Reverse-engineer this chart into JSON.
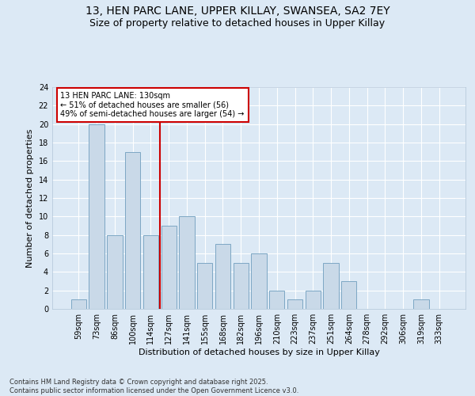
{
  "title1": "13, HEN PARC LANE, UPPER KILLAY, SWANSEA, SA2 7EY",
  "title2": "Size of property relative to detached houses in Upper Killay",
  "xlabel": "Distribution of detached houses by size in Upper Killay",
  "ylabel": "Number of detached properties",
  "categories": [
    "59sqm",
    "73sqm",
    "86sqm",
    "100sqm",
    "114sqm",
    "127sqm",
    "141sqm",
    "155sqm",
    "168sqm",
    "182sqm",
    "196sqm",
    "210sqm",
    "223sqm",
    "237sqm",
    "251sqm",
    "264sqm",
    "278sqm",
    "292sqm",
    "306sqm",
    "319sqm",
    "333sqm"
  ],
  "values": [
    1,
    20,
    8,
    17,
    8,
    9,
    10,
    5,
    7,
    5,
    6,
    2,
    1,
    2,
    5,
    3,
    0,
    0,
    0,
    1,
    0
  ],
  "bar_color": "#c9d9e8",
  "bar_edge_color": "#7da7c4",
  "background_color": "#dce9f5",
  "plot_bg_color": "#dce9f5",
  "grid_color": "#ffffff",
  "vline_color": "#cc0000",
  "annotation_text": "13 HEN PARC LANE: 130sqm\n← 51% of detached houses are smaller (56)\n49% of semi-detached houses are larger (54) →",
  "annotation_box_color": "#ffffff",
  "annotation_box_edge": "#cc0000",
  "ylim": [
    0,
    24
  ],
  "yticks": [
    0,
    2,
    4,
    6,
    8,
    10,
    12,
    14,
    16,
    18,
    20,
    22,
    24
  ],
  "footer": "Contains HM Land Registry data © Crown copyright and database right 2025.\nContains public sector information licensed under the Open Government Licence v3.0.",
  "title_fontsize": 10,
  "subtitle_fontsize": 9,
  "tick_fontsize": 7,
  "ylabel_fontsize": 8,
  "xlabel_fontsize": 8,
  "annotation_fontsize": 7,
  "footer_fontsize": 6
}
